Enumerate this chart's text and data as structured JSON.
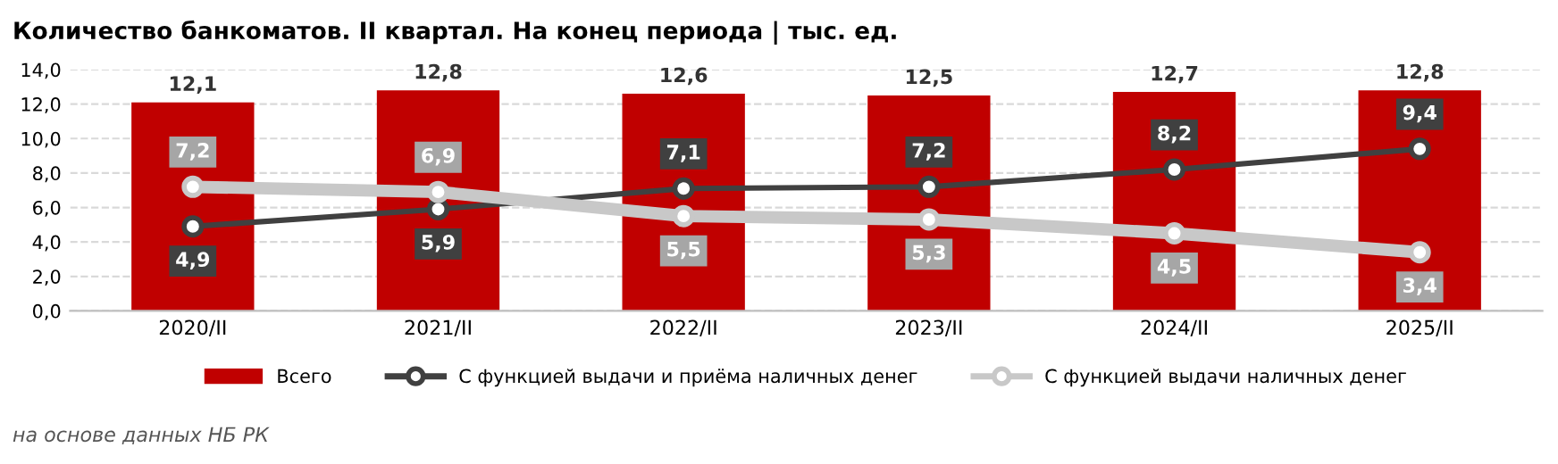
{
  "chart_data": {
    "type": "bar",
    "title": "Количество банкоматов. II квартал. На конец периода | тыс. ед.",
    "categories": [
      "2020/II",
      "2021/II",
      "2022/II",
      "2023/II",
      "2024/II",
      "2025/II"
    ],
    "series": [
      {
        "name": "Всего",
        "color": "#c00000",
        "values": [
          12.1,
          12.8,
          12.6,
          12.5,
          12.7,
          12.8
        ],
        "value_labels": [
          "12,1",
          "12,8",
          "12,6",
          "12,5",
          "12,7",
          "12,8"
        ]
      },
      {
        "name": "С функцией выдачи и приёма наличных денег",
        "type": "line",
        "color": "#404040",
        "marker": "circle",
        "values": [
          4.9,
          5.9,
          7.1,
          7.2,
          8.2,
          9.4
        ],
        "value_labels": [
          "4,9",
          "5,9",
          "7,1",
          "7,2",
          "8,2",
          "9,4"
        ]
      },
      {
        "name": "С функцией выдачи наличных денег",
        "type": "line",
        "color": "#c8c8c8",
        "marker": "circle",
        "values": [
          7.2,
          6.9,
          5.5,
          5.3,
          4.5,
          3.4
        ],
        "value_labels": [
          "7,2",
          "6,9",
          "5,5",
          "5,3",
          "4,5",
          "3,4"
        ]
      }
    ],
    "ylim": [
      0,
      14
    ],
    "yticks": [
      {
        "value": 0,
        "label": "0,0"
      },
      {
        "value": 2,
        "label": "2,0"
      },
      {
        "value": 4,
        "label": "4,0"
      },
      {
        "value": 6,
        "label": "6,0"
      },
      {
        "value": 8,
        "label": "8,0"
      },
      {
        "value": 10,
        "label": "10,0"
      },
      {
        "value": 12,
        "label": "12,0"
      },
      {
        "value": 14,
        "label": "14,0"
      }
    ],
    "grid": "y",
    "legend": "bottom",
    "annotations": [
      "на основе данных НБ РК"
    ]
  }
}
